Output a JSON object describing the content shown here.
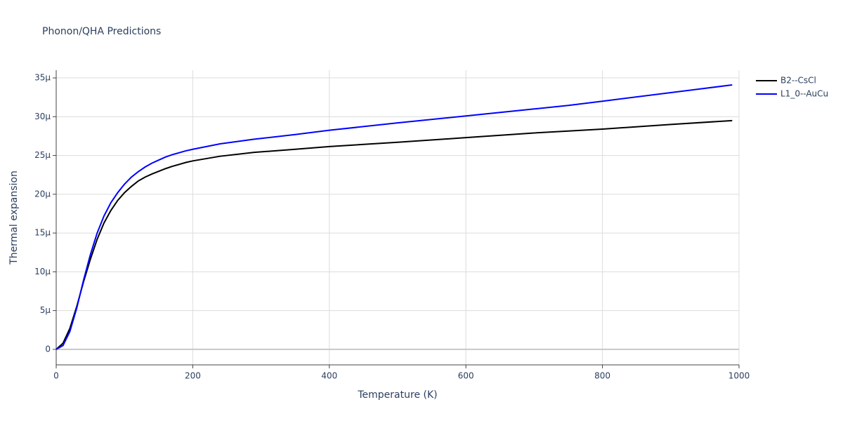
{
  "chart_data": {
    "type": "line",
    "title": "Phonon/QHA Predictions",
    "x_label": "Temperature (K)",
    "y_label": "Thermal expansion",
    "x": [
      0,
      10,
      20,
      30,
      40,
      50,
      60,
      70,
      80,
      90,
      100,
      110,
      120,
      130,
      140,
      150,
      160,
      170,
      180,
      190,
      200,
      240,
      290,
      350,
      400,
      500,
      600,
      700,
      750,
      800,
      900,
      990
    ],
    "series": [
      {
        "name": "B2--CsCl",
        "color": "#000000",
        "values": [
          0,
          0.8,
          2.7,
          5.5,
          8.7,
          11.6,
          14.2,
          16.3,
          17.9,
          19.2,
          20.2,
          21.0,
          21.7,
          22.2,
          22.6,
          22.95,
          23.3,
          23.6,
          23.85,
          24.1,
          24.3,
          24.9,
          25.4,
          25.8,
          26.15,
          26.7,
          27.3,
          27.9,
          28.15,
          28.4,
          29.0,
          29.5
        ]
      },
      {
        "name": "L1_0--AuCu",
        "color": "#0000ff",
        "values": [
          0,
          0.5,
          2.3,
          5.3,
          8.9,
          12.2,
          15.0,
          17.2,
          18.9,
          20.2,
          21.3,
          22.2,
          22.9,
          23.5,
          24.0,
          24.4,
          24.8,
          25.1,
          25.35,
          25.6,
          25.8,
          26.5,
          27.1,
          27.7,
          28.25,
          29.2,
          30.1,
          31.0,
          31.45,
          32.0,
          33.1,
          34.1
        ]
      }
    ],
    "xlim": [
      0,
      1000
    ],
    "xticks": [
      0,
      200,
      400,
      600,
      800,
      1000
    ],
    "ylim": [
      -2,
      36
    ],
    "yticks": [
      0,
      {
        "value": 5,
        "label": "5μ"
      },
      {
        "value": 10,
        "label": "10μ"
      },
      {
        "value": 15,
        "label": "15μ"
      },
      {
        "value": 20,
        "label": "20μ"
      },
      {
        "value": 25,
        "label": "25μ"
      },
      {
        "value": 30,
        "label": "30μ"
      },
      {
        "value": 35,
        "label": "35μ"
      }
    ],
    "grid": true,
    "legend": "top-right"
  }
}
